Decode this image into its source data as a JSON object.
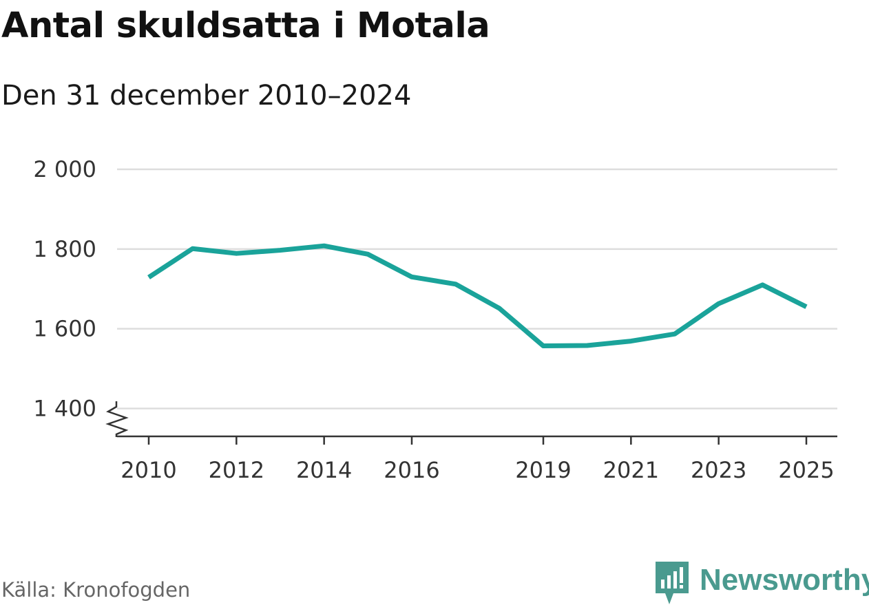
{
  "header": {
    "title": "Antal skuldsatta i Motala",
    "subtitle": "Den 31 december 2010–2024"
  },
  "footer": {
    "source": "Källa: Kronofogden",
    "brand": "Newsworthy"
  },
  "colors": {
    "line": "#1aa39a",
    "grid": "#dddddd",
    "axis": "#333333",
    "brand": "#4a9a8f"
  },
  "icons": {
    "brand_logo": "bar-chart-speech-bubble-icon",
    "axis_break": "zigzag-axis-break-icon"
  },
  "chart_data": {
    "type": "line",
    "title": "Antal skuldsatta i Motala",
    "subtitle": "Den 31 december 2010–2024",
    "xlabel": "",
    "ylabel": "",
    "ylim": [
      1330,
      2000
    ],
    "xlim": [
      2010,
      2025
    ],
    "grid": true,
    "y_ticks": [
      {
        "value": 2000,
        "label": "2 000"
      },
      {
        "value": 1800,
        "label": "1 800"
      },
      {
        "value": 1600,
        "label": "1 600"
      },
      {
        "value": 1400,
        "label": "1 400"
      }
    ],
    "x_ticks": [
      {
        "value": 2010,
        "label": "2010"
      },
      {
        "value": 2012,
        "label": "2012"
      },
      {
        "value": 2014,
        "label": "2014"
      },
      {
        "value": 2016,
        "label": "2016"
      },
      {
        "value": 2019,
        "label": "2019"
      },
      {
        "value": 2021,
        "label": "2021"
      },
      {
        "value": 2023,
        "label": "2023"
      },
      {
        "value": 2025,
        "label": "2025"
      }
    ],
    "series": [
      {
        "name": "Antal skuldsatta",
        "x": [
          2010,
          2011,
          2012,
          2013,
          2014,
          2015,
          2016,
          2017,
          2018,
          2019,
          2020,
          2021,
          2022,
          2023,
          2024,
          2025
        ],
        "values": [
          1729,
          1801,
          1789,
          1797,
          1808,
          1787,
          1730,
          1712,
          1651,
          1557,
          1558,
          1569,
          1587,
          1663,
          1710,
          1655
        ]
      }
    ]
  }
}
